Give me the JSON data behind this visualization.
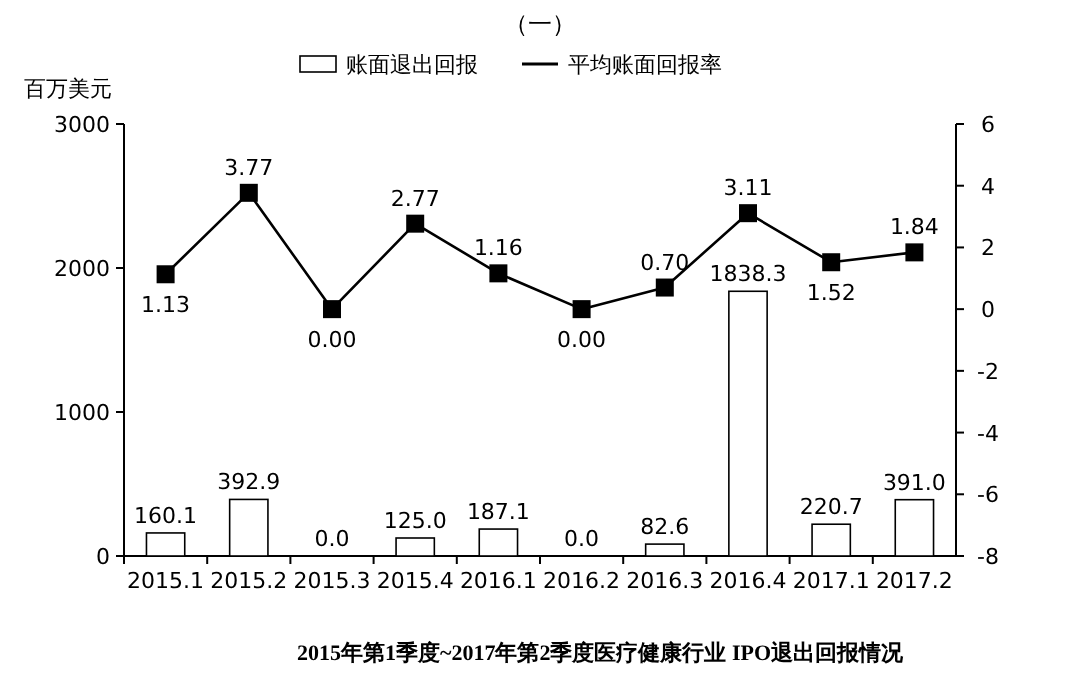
{
  "chart_data": {
    "type": "bar",
    "title": "（一）",
    "ylabel": "百万美元",
    "annotations": [
      "2015年第1季度~2017年第2季度医疗健康行业 IPO退出回报情况"
    ],
    "categories": [
      "2015.1",
      "2015.2",
      "2015.3",
      "2015.4",
      "2016.1",
      "2016.2",
      "2016.3",
      "2016.4",
      "2017.1",
      "2017.2"
    ],
    "series": [
      {
        "name": "账面退出回报",
        "color": "#ffffff",
        "values": [
          160.1,
          392.9,
          0,
          125,
          187.1,
          0,
          82.6,
          1838.3,
          220.7,
          391
        ],
        "value_labels": [
          "160.1",
          "392.9",
          "0.0",
          "125.0",
          "187.1",
          "0.0",
          "82.6",
          "1838.3",
          "220.7",
          "391.0"
        ]
      },
      {
        "name": "平均账面回报率",
        "type": "line",
        "axis": "y2",
        "color": "#000000",
        "values": [
          1.13,
          3.77,
          0,
          2.77,
          1.16,
          0,
          0.7,
          3.11,
          1.52,
          1.84
        ],
        "value_labels": [
          "1.13",
          "3.77",
          "0.00",
          "2.77",
          "1.16",
          "0.00",
          "0.70",
          "3.11",
          "1.52",
          "1.84"
        ]
      }
    ],
    "ylim": [
      0,
      3000
    ],
    "yticks": [
      0,
      1000,
      2000,
      3000
    ],
    "y2lim": [
      -8,
      6
    ],
    "y2ticks": [
      -8,
      -6,
      -4,
      -2,
      0,
      2,
      4,
      6
    ],
    "marker": "square",
    "legend": "top"
  }
}
